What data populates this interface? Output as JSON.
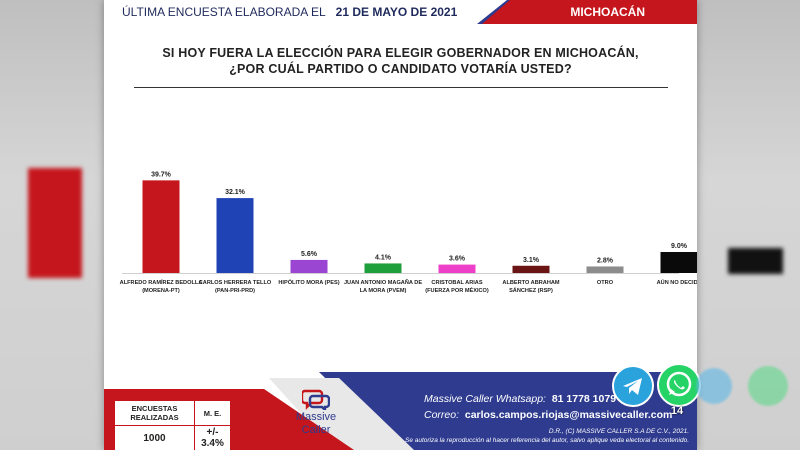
{
  "header": {
    "prefix": "ÚLTIMA ENCUESTA ELABORADA EL",
    "date": "21 DE MAYO DE 2021",
    "state": "MICHOACÁN"
  },
  "question": {
    "line1": "SI HOY FUERA LA ELECCIÓN PARA ELEGIR GOBERNADOR EN MICHOACÁN,",
    "line2": "¿POR CUÁL PARTIDO O CANDIDATO VOTARÍA USTED?"
  },
  "chart_data": {
    "type": "bar",
    "title": "",
    "xlabel": "",
    "ylabel": "",
    "ylim": [
      0,
      45
    ],
    "grid": false,
    "categories": [
      [
        "ALFREDO RAMÍREZ BEDOLLA",
        "(MORENA-PT)"
      ],
      [
        "CARLOS HERRERA TELLO",
        "(PAN-PRI-PRD)"
      ],
      [
        "HIPÓLITO MORA (PES)"
      ],
      [
        "JUAN ANTONIO MAGAÑA DE",
        "LA MORA (PVEM)"
      ],
      [
        "CRISTOBAL ARIAS",
        "(FUERZA POR MÉXICO)"
      ],
      [
        "ALBERTO ABRAHAM",
        "SÁNCHEZ (RSP)"
      ],
      [
        "OTRO"
      ],
      [
        "AÚN NO DECIDE"
      ]
    ],
    "values": [
      39.7,
      32.1,
      5.6,
      4.1,
      3.6,
      3.1,
      2.8,
      9.0
    ],
    "value_labels": [
      "39.7%",
      "32.1%",
      "5.6%",
      "4.1%",
      "3.6%",
      "3.1%",
      "2.8%",
      "9.0%"
    ],
    "colors": [
      "#c4161c",
      "#1f43b5",
      "#9b45d3",
      "#1f9e3c",
      "#ee3fc8",
      "#6b1414",
      "#8c8c8c",
      "#0a0a0a"
    ]
  },
  "stats": {
    "col1_header": "ENCUESTAS REALIZADAS",
    "col2_header": "M. E.",
    "col1_value": "1000",
    "col2_value": "+/- 3.4%"
  },
  "brand": {
    "name_line1": "Massive",
    "name_line2": "Caller"
  },
  "contact": {
    "whatsapp_label": "Massive Caller Whatsapp:",
    "whatsapp_number": "81 1778 1079",
    "email_label": "Correo:",
    "email": "carlos.campos.riojas@massivecaller.com"
  },
  "legal": {
    "line1": "D.R., (C) MASSIVE CALLER S.A DE C.V., 2021.",
    "line2": "Se autoriza la reproducción al hacer referencia del autor, salvo aplique veda electoral al contenido."
  },
  "share": {
    "whatsapp_count": "14"
  }
}
